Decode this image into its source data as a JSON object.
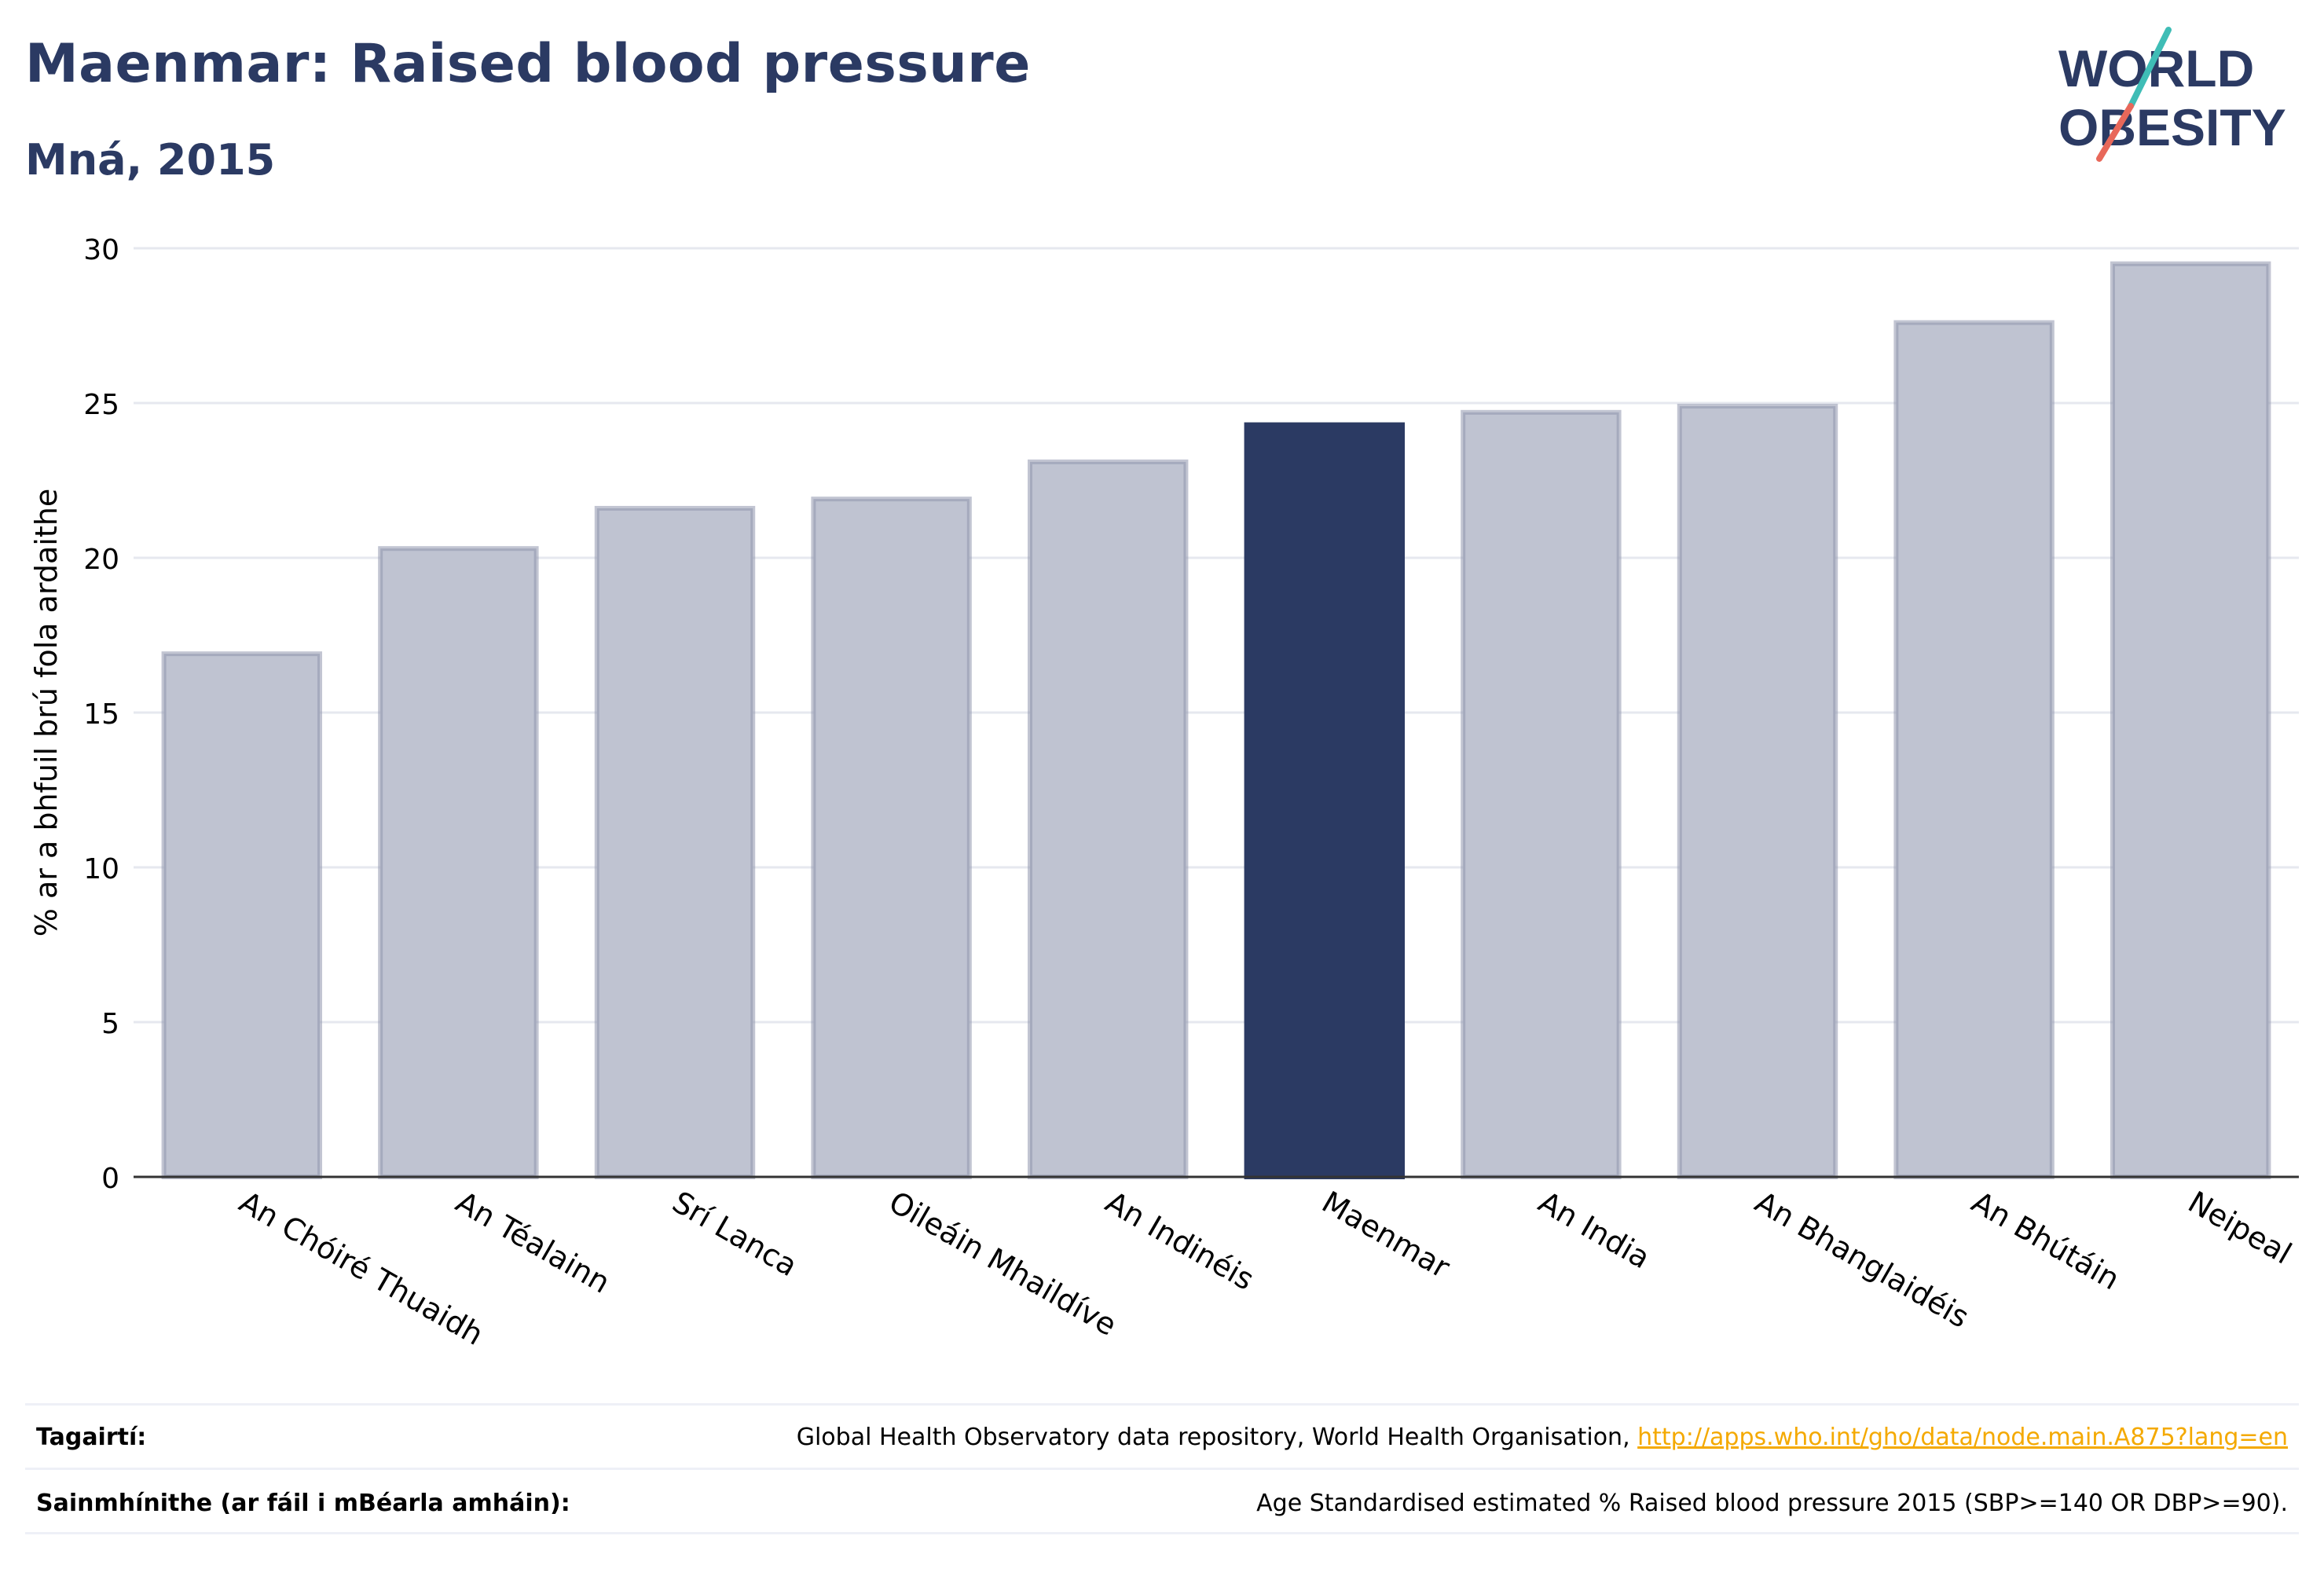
{
  "header": {
    "title": "Maenmar: Raised blood pressure",
    "subtitle": "Mná, 2015"
  },
  "logo": {
    "line1": "WORLD",
    "line2": "OBESITY"
  },
  "colors": {
    "highlight": "#2b3a63",
    "other": "#bfc3d1",
    "other_stroke": "#8f96ad",
    "grid": "#e6e8ef"
  },
  "chart_data": {
    "type": "bar",
    "ylabel": "% ar a bhfuil brú fola ardaithe",
    "ylim": [
      0,
      30
    ],
    "yticks": [
      0,
      5,
      10,
      15,
      20,
      25,
      30
    ],
    "categories": [
      "An Chóiré Thuaidh",
      "An Téalainn",
      "Srí Lanca",
      "Oileáin Mhaildíve",
      "An Indinéis",
      "Maenmar",
      "An India",
      "An Bhanglaidéis",
      "An Bhútáin",
      "Neipeal"
    ],
    "values": [
      16.9,
      20.3,
      21.6,
      21.9,
      23.1,
      24.3,
      24.7,
      24.9,
      27.6,
      29.5
    ],
    "highlight": "Maenmar",
    "grid": true
  },
  "footer": {
    "references_label": "Tagairtí:",
    "references_text": "Global Health Observatory data repository, World Health Organisation, ",
    "references_link": "http://apps.who.int/gho/data/node.main.A875?lang=en",
    "definitions_label": "Sainmhínithe (ar fáil i mBéarla amháin):",
    "definitions_text": "Age Standardised estimated % Raised blood pressure 2015 (SBP>=140 OR DBP>=90)."
  }
}
